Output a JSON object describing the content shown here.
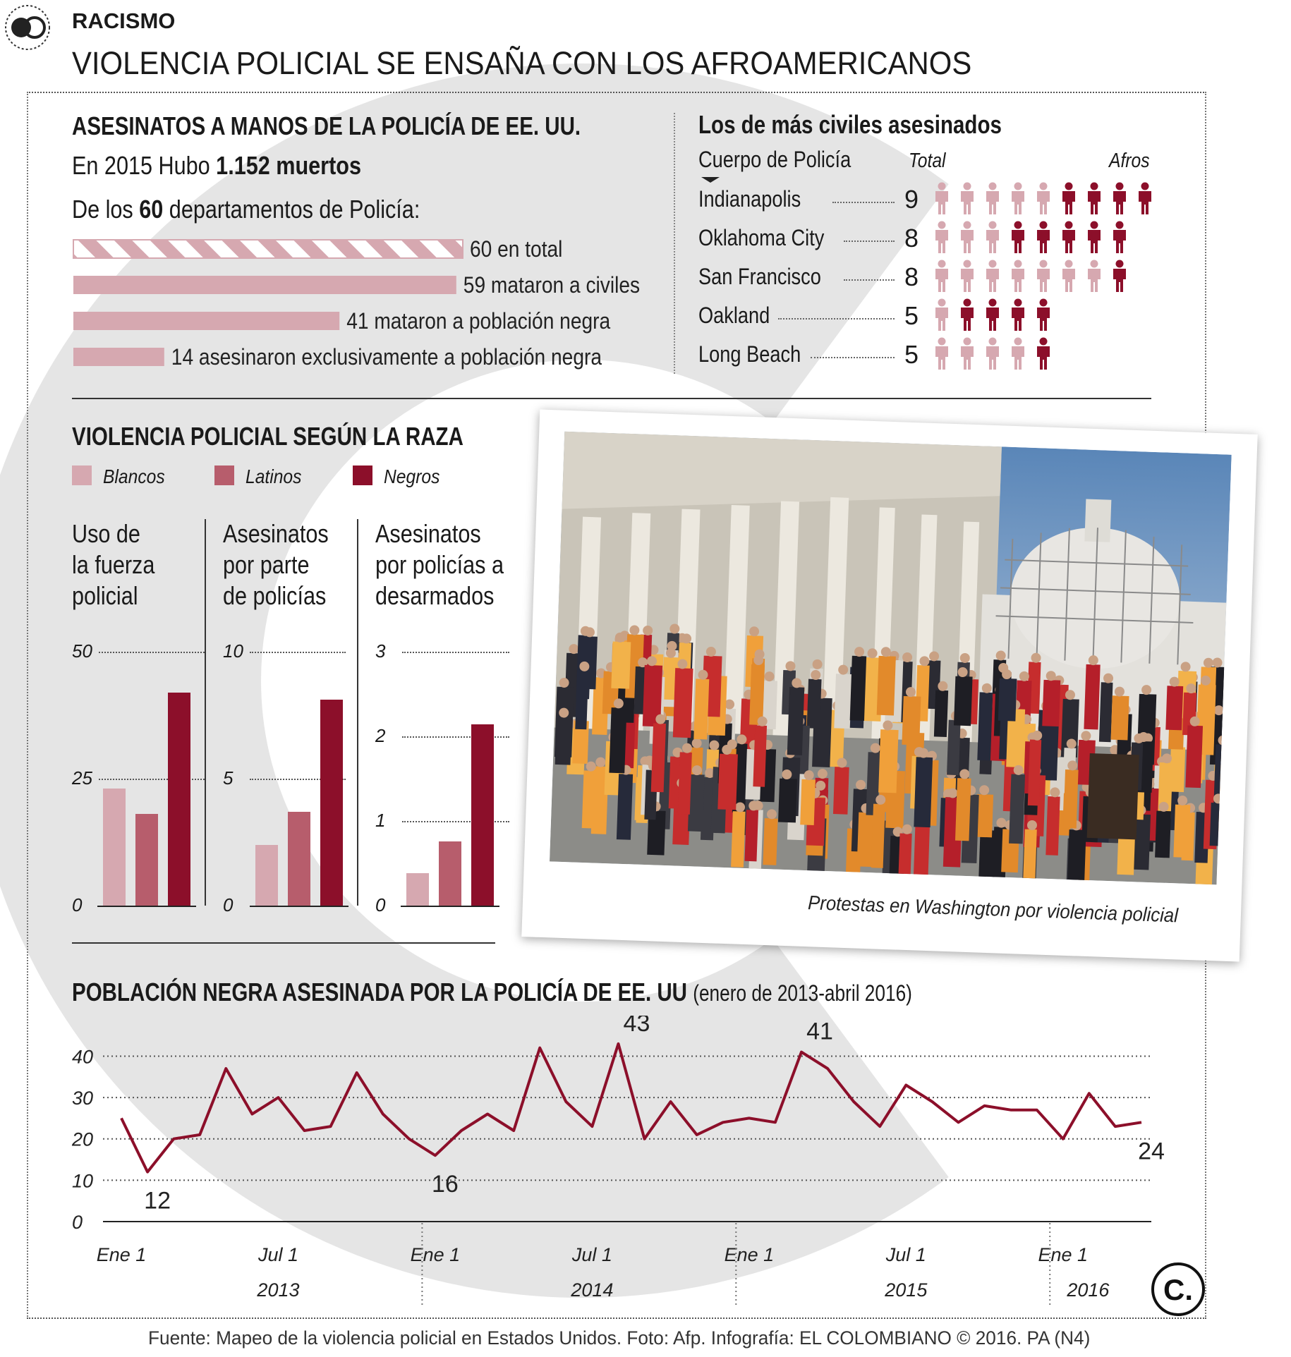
{
  "header": {
    "section": "RACISMO",
    "title": "VIOLENCIA POLICIAL SE ENSAÑA CON LOS AFROAMERICANOS"
  },
  "killings": {
    "title": "ASESINATOS A MANOS DE LA POLICÍA DE EE. UU.",
    "line1_prefix": "En 2015 Hubo",
    "line1_strong": "1.152 muertos",
    "line2_prefix": "De los",
    "line2_strong": "60",
    "line2_suffix": "departamentos de Policía:"
  },
  "departments": {
    "title": "Los de más civiles asesinados",
    "col_body": "Cuerpo de Policía",
    "col_total": "Total",
    "col_afros": "Afros"
  },
  "race": {
    "title": "VIOLENCIA POLICIAL SEGÚN LA RAZA",
    "legend": [
      "Blancos",
      "Latinos",
      "Negros"
    ]
  },
  "photo": {
    "caption": "Protestas en Washington por violencia policial"
  },
  "timeline": {
    "title": "POBLACIÓN NEGRA ASESINADA POR LA POLICÍA DE EE. UU",
    "subtitle": "(enero de 2013-abril 2016)"
  },
  "footer": {
    "source": "Fuente: Mapeo de la violencia policial en Estados Unidos. Foto: Afp. Infografía: EL COLOMBIANO © 2016. PA (N4)"
  },
  "colors": {
    "light": "#d6a8b0",
    "mid": "#b75d6c",
    "dark": "#8c0f2a",
    "watermark": "#e5e5e5"
  },
  "chart_data": [
    {
      "type": "bar",
      "title": "ASESINATOS A MANOS DE LA POLICÍA DE EE. UU.",
      "orientation": "horizontal",
      "values": [
        60,
        59,
        41,
        14
      ],
      "labels": [
        "60 en total",
        "59 mataron a civiles",
        "41 mataron a población negra",
        "14 asesinaron exclusivamente a población negra"
      ],
      "xlim": [
        0,
        60
      ]
    },
    {
      "type": "table",
      "title": "Los de más civiles asesinados",
      "rows": [
        {
          "name": "Indianapolis",
          "total": 9,
          "afros": 4
        },
        {
          "name": "Oklahoma City",
          "total": 8,
          "afros": 5
        },
        {
          "name": "San Francisco",
          "total": 8,
          "afros": 1
        },
        {
          "name": "Oakland",
          "total": 5,
          "afros": 4
        },
        {
          "name": "Long Beach",
          "total": 5,
          "afros": 1
        }
      ]
    },
    {
      "type": "bar",
      "title": "Uso de la fuerza policial",
      "title_lines": [
        "Uso de",
        "la fuerza",
        "policial"
      ],
      "categories": [
        "Blancos",
        "Latinos",
        "Negros"
      ],
      "values": [
        23,
        18,
        42
      ],
      "yticks": [
        0,
        25,
        50
      ],
      "ylim": [
        0,
        50
      ]
    },
    {
      "type": "bar",
      "title": "Asesinatos por parte de policías",
      "title_lines": [
        "Asesinatos",
        "por parte",
        "de policías"
      ],
      "categories": [
        "Blancos",
        "Latinos",
        "Negros"
      ],
      "values": [
        2.4,
        3.7,
        8.1
      ],
      "yticks": [
        0,
        5,
        10
      ],
      "ylim": [
        0,
        10
      ]
    },
    {
      "type": "bar",
      "title": "Asesinatos por policías a desarmados",
      "title_lines": [
        "Asesinatos",
        "por policías a",
        "desarmados"
      ],
      "categories": [
        "Blancos",
        "Latinos",
        "Negros"
      ],
      "values": [
        0.38,
        0.76,
        2.14
      ],
      "yticks": [
        0,
        1,
        2,
        3
      ],
      "ylim": [
        0,
        3
      ]
    },
    {
      "type": "line",
      "title": "POBLACIÓN NEGRA ASESINADA POR LA POLICÍA DE EE. UU",
      "subtitle": "(enero de 2013-abril 2016)",
      "x_start": "2013-01",
      "x_end": "2016-04",
      "values": [
        25,
        12,
        20,
        21,
        37,
        26,
        30,
        22,
        23,
        36,
        26,
        20,
        16,
        22,
        26,
        22,
        42,
        29,
        23,
        43,
        20,
        29,
        21,
        24,
        25,
        24,
        41,
        37,
        29,
        23,
        33,
        29,
        24,
        28,
        27,
        27,
        20,
        31,
        23,
        24
      ],
      "annotations": [
        {
          "index": 1,
          "label": "12"
        },
        {
          "index": 12,
          "label": "16"
        },
        {
          "index": 19,
          "label": "43"
        },
        {
          "index": 26,
          "label": "41"
        },
        {
          "index": 39,
          "label": "24"
        }
      ],
      "yticks": [
        0,
        10,
        20,
        30,
        40
      ],
      "ylim": [
        0,
        44
      ],
      "xticks": [
        "Ene 1",
        "Jul 1",
        "Ene 1",
        "Jul 1",
        "Ene 1",
        "Jul 1",
        "Ene 1"
      ],
      "years": [
        "2013",
        "2014",
        "2015",
        "2016"
      ]
    }
  ]
}
